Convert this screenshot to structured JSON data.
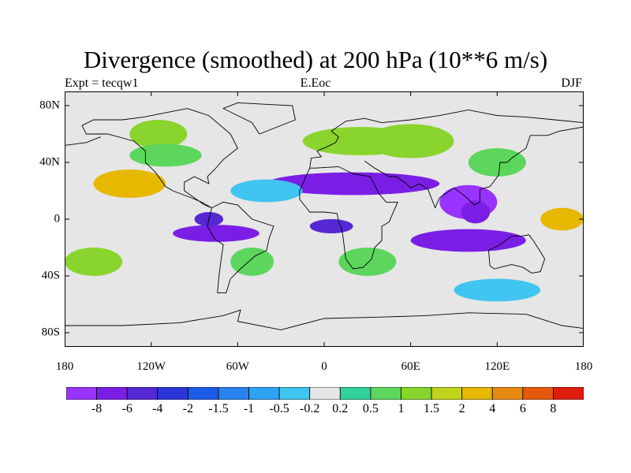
{
  "title": "Divergence (smoothed) at 200 hPa (10**6 m/s)",
  "subtitle_left": "Expt = tecqw1",
  "subtitle_center": "E.Eoc",
  "subtitle_right": "DJF",
  "map_data": {
    "projection": "cylindrical equidistant",
    "variable": "200 hPa divergence (smoothed)",
    "x_ticks": [
      "180",
      "120W",
      "60W",
      "0",
      "60E",
      "120E",
      "180"
    ],
    "y_ticks": [
      "80N",
      "40N",
      "0",
      "40S",
      "80S"
    ],
    "x_tick_values": [
      -180,
      -120,
      -60,
      0,
      60,
      120,
      180
    ],
    "y_tick_values": [
      80,
      40,
      0,
      -40,
      -80
    ],
    "lon_range": [
      -180,
      180
    ],
    "lat_range": [
      -90,
      90
    ],
    "blobs": [
      {
        "lon": 100,
        "lat": 12,
        "rx": 20,
        "ry": 12,
        "level": 0
      },
      {
        "lon": 105,
        "lat": 5,
        "rx": 10,
        "ry": 8,
        "level": 1
      },
      {
        "lon": 100,
        "lat": -15,
        "rx": 40,
        "ry": 8,
        "level": 1
      },
      {
        "lon": 20,
        "lat": 25,
        "rx": 60,
        "ry": 8,
        "level": 1
      },
      {
        "lon": -75,
        "lat": -10,
        "rx": 30,
        "ry": 6,
        "level": 1
      },
      {
        "lon": -80,
        "lat": 0,
        "rx": 10,
        "ry": 5,
        "level": 2
      },
      {
        "lon": 5,
        "lat": -5,
        "rx": 15,
        "ry": 5,
        "level": 2
      },
      {
        "lon": -135,
        "lat": 25,
        "rx": 25,
        "ry": 10,
        "level": 13
      },
      {
        "lon": 165,
        "lat": 0,
        "rx": 15,
        "ry": 8,
        "level": 13
      },
      {
        "lon": 25,
        "lat": 55,
        "rx": 40,
        "ry": 10,
        "level": 11
      },
      {
        "lon": 60,
        "lat": 55,
        "rx": 30,
        "ry": 12,
        "level": 11
      },
      {
        "lon": -115,
        "lat": 60,
        "rx": 20,
        "ry": 10,
        "level": 11
      },
      {
        "lon": -160,
        "lat": -30,
        "rx": 20,
        "ry": 10,
        "level": 11
      },
      {
        "lon": 120,
        "lat": 40,
        "rx": 20,
        "ry": 10,
        "level": 10
      },
      {
        "lon": -110,
        "lat": 45,
        "rx": 25,
        "ry": 8,
        "level": 10
      },
      {
        "lon": -50,
        "lat": -30,
        "rx": 15,
        "ry": 10,
        "level": 10
      },
      {
        "lon": 30,
        "lat": -30,
        "rx": 20,
        "ry": 10,
        "level": 10
      },
      {
        "lon": -40,
        "lat": 20,
        "rx": 25,
        "ry": 8,
        "level": 7
      },
      {
        "lon": 120,
        "lat": -50,
        "rx": 30,
        "ry": 8,
        "level": 7
      }
    ],
    "colorbar": {
      "labels": [
        "-8",
        "-6",
        "-4",
        "-2",
        "-1.5",
        "-1",
        "-0.5",
        "-0.2",
        "0.2",
        "0.5",
        "1",
        "1.5",
        "2",
        "4",
        "6",
        "8"
      ],
      "colors": [
        "#9933ff",
        "#7a1ee6",
        "#5528d4",
        "#2b35d9",
        "#1c5ce6",
        "#2a82ee",
        "#2ea2f4",
        "#40c4f0",
        "#e6e6e6",
        "#33d19c",
        "#5cd65c",
        "#8ad42e",
        "#bfd41a",
        "#e6b800",
        "#e88a12",
        "#e65a0e",
        "#e01e0e"
      ]
    }
  }
}
